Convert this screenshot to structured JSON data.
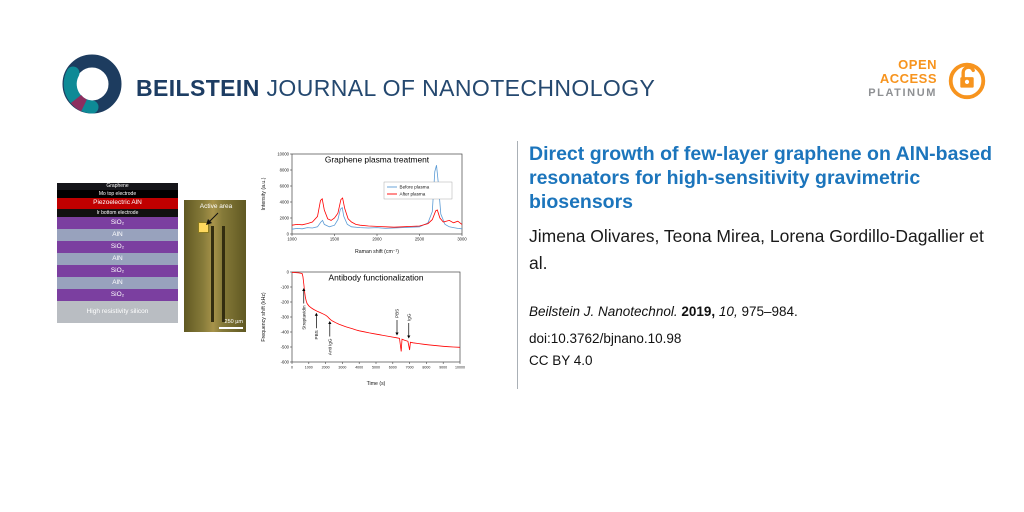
{
  "header": {
    "brand": "BEILSTEIN",
    "journal": "JOURNAL OF NANOTECHNOLOGY",
    "open_access": {
      "line1": "OPEN",
      "line2": "ACCESS",
      "line3": "PLATINUM"
    },
    "colors": {
      "navy": "#1d3d63",
      "orange": "#f7941e",
      "platinum_gray": "#8f9194"
    }
  },
  "figure": {
    "stack": {
      "layers": [
        {
          "label": "Graphene",
          "color": "#15151a",
          "h": 7
        },
        {
          "label": "Mo top electrode",
          "color": "#000000",
          "h": 8
        },
        {
          "label": "Piezoelectric AlN",
          "color": "#c00000",
          "h": 11
        },
        {
          "label": "Ir bottom electrode",
          "color": "#111111",
          "h": 8
        },
        {
          "label": "SiO₂",
          "color": "#7b3fa0",
          "h": 12
        },
        {
          "label": "AlN",
          "color": "#98a2bd",
          "h": 12
        },
        {
          "label": "SiO₂",
          "color": "#7b3fa0",
          "h": 12
        },
        {
          "label": "AlN",
          "color": "#98a2bd",
          "h": 12
        },
        {
          "label": "SiO₂",
          "color": "#7b3fa0",
          "h": 12
        },
        {
          "label": "AlN",
          "color": "#98a2bd",
          "h": 12
        },
        {
          "label": "SiO₂",
          "color": "#7b3fa0",
          "h": 12
        },
        {
          "label": "High resistivity silicon",
          "color": "#b9bdc2",
          "h": 22
        }
      ]
    },
    "micrograph": {
      "label": "Active area",
      "scale": "250 µm"
    }
  },
  "chart_data": [
    {
      "type": "line",
      "title": "Graphene plasma treatment",
      "xlabel": "Raman shift (cm⁻¹)",
      "ylabel": "Intensity (a.u.)",
      "xlim": [
        1000,
        3000
      ],
      "ylim": [
        0,
        10000
      ],
      "xticks": [
        1000,
        1500,
        2000,
        2500,
        3000
      ],
      "yticks": [
        0,
        2000,
        4000,
        6000,
        8000,
        10000
      ],
      "legend_position": "right",
      "series": [
        {
          "name": "Before plasma",
          "color": "#5b9bd5",
          "points": [
            [
              1000,
              600
            ],
            [
              1060,
              700
            ],
            [
              1120,
              650
            ],
            [
              1180,
              800
            ],
            [
              1240,
              750
            ],
            [
              1300,
              900
            ],
            [
              1340,
              1500
            ],
            [
              1360,
              1700
            ],
            [
              1380,
              1200
            ],
            [
              1440,
              900
            ],
            [
              1500,
              1100
            ],
            [
              1540,
              1800
            ],
            [
              1570,
              3100
            ],
            [
              1590,
              3300
            ],
            [
              1610,
              2200
            ],
            [
              1650,
              1200
            ],
            [
              1700,
              900
            ],
            [
              1800,
              800
            ],
            [
              1900,
              750
            ],
            [
              2000,
              800
            ],
            [
              2100,
              700
            ],
            [
              2200,
              750
            ],
            [
              2300,
              800
            ],
            [
              2400,
              850
            ],
            [
              2500,
              900
            ],
            [
              2600,
              1400
            ],
            [
              2650,
              2800
            ],
            [
              2680,
              7800
            ],
            [
              2700,
              8600
            ],
            [
              2720,
              6500
            ],
            [
              2750,
              2500
            ],
            [
              2800,
              1200
            ],
            [
              2850,
              900
            ],
            [
              2900,
              800
            ],
            [
              2950,
              700
            ],
            [
              3000,
              650
            ]
          ]
        },
        {
          "name": "After plasma",
          "color": "#ff0000",
          "points": [
            [
              1000,
              1100
            ],
            [
              1060,
              1200
            ],
            [
              1120,
              1150
            ],
            [
              1180,
              1300
            ],
            [
              1240,
              1500
            ],
            [
              1300,
              2200
            ],
            [
              1335,
              4200
            ],
            [
              1355,
              4400
            ],
            [
              1380,
              3000
            ],
            [
              1420,
              1900
            ],
            [
              1460,
              1700
            ],
            [
              1500,
              2000
            ],
            [
              1540,
              2600
            ],
            [
              1575,
              4300
            ],
            [
              1595,
              4500
            ],
            [
              1620,
              3200
            ],
            [
              1660,
              1900
            ],
            [
              1700,
              1500
            ],
            [
              1750,
              1200
            ],
            [
              1800,
              1100
            ],
            [
              1900,
              1000
            ],
            [
              2000,
              950
            ],
            [
              2100,
              900
            ],
            [
              2200,
              850
            ],
            [
              2300,
              900
            ],
            [
              2400,
              950
            ],
            [
              2500,
              1000
            ],
            [
              2600,
              1300
            ],
            [
              2650,
              1800
            ],
            [
              2690,
              2900
            ],
            [
              2710,
              3000
            ],
            [
              2740,
              2000
            ],
            [
              2780,
              1500
            ],
            [
              2850,
              1700
            ],
            [
              2900,
              1400
            ],
            [
              2950,
              1600
            ],
            [
              3000,
              1200
            ]
          ]
        }
      ]
    },
    {
      "type": "line",
      "title": "Antibody functionalization",
      "xlabel": "Time (s)",
      "ylabel": "Frequency shift (kHz)",
      "xlim": [
        0,
        10000
      ],
      "ylim": [
        -600,
        0
      ],
      "xticks": [
        0,
        1000,
        2000,
        3000,
        4000,
        5000,
        6000,
        7000,
        8000,
        9000,
        10000
      ],
      "yticks": [
        0,
        -100,
        -200,
        -300,
        -400,
        -500,
        -600
      ],
      "series": [
        {
          "name": "Frequency shift",
          "color": "#ff0000",
          "points": [
            [
              0,
              -2
            ],
            [
              200,
              -4
            ],
            [
              400,
              -6
            ],
            [
              600,
              -10
            ],
            [
              650,
              -30
            ],
            [
              700,
              -80
            ],
            [
              750,
              -130
            ],
            [
              800,
              -170
            ],
            [
              850,
              -195
            ],
            [
              900,
              -210
            ],
            [
              1000,
              -225
            ],
            [
              1100,
              -235
            ],
            [
              1200,
              -243
            ],
            [
              1300,
              -250
            ],
            [
              1400,
              -256
            ],
            [
              1500,
              -262
            ],
            [
              1700,
              -272
            ],
            [
              1900,
              -282
            ],
            [
              2000,
              -288
            ],
            [
              2100,
              -296
            ],
            [
              2200,
              -308
            ],
            [
              2300,
              -318
            ],
            [
              2400,
              -326
            ],
            [
              2600,
              -338
            ],
            [
              2800,
              -348
            ],
            [
              3000,
              -357
            ],
            [
              3200,
              -365
            ],
            [
              3400,
              -372
            ],
            [
              3600,
              -379
            ],
            [
              3800,
              -386
            ],
            [
              4000,
              -392
            ],
            [
              4300,
              -399
            ],
            [
              4600,
              -406
            ],
            [
              4900,
              -412
            ],
            [
              5200,
              -418
            ],
            [
              5500,
              -424
            ],
            [
              5800,
              -430
            ],
            [
              6000,
              -434
            ],
            [
              6200,
              -438
            ],
            [
              6400,
              -442
            ],
            [
              6500,
              -530
            ],
            [
              6550,
              -448
            ],
            [
              6700,
              -455
            ],
            [
              6900,
              -462
            ],
            [
              7000,
              -520
            ],
            [
              7050,
              -468
            ],
            [
              7200,
              -472
            ],
            [
              7500,
              -477
            ],
            [
              7800,
              -481
            ],
            [
              8100,
              -485
            ],
            [
              8400,
              -489
            ],
            [
              8700,
              -492
            ],
            [
              9000,
              -495
            ],
            [
              9300,
              -498
            ],
            [
              9600,
              -500
            ],
            [
              10000,
              -502
            ]
          ]
        }
      ],
      "annotations": [
        {
          "label": "Streptavidin",
          "x": 700,
          "tip": -90,
          "side": "below"
        },
        {
          "label": "PBS",
          "x": 1450,
          "tip": -255,
          "side": "below"
        },
        {
          "label": "Anti IgG",
          "x": 2250,
          "tip": -310,
          "side": "below"
        },
        {
          "label": "PBS",
          "x": 6250,
          "tip": -440,
          "side": "above"
        },
        {
          "label": "IgG",
          "x": 6950,
          "tip": -460,
          "side": "above"
        }
      ]
    }
  ],
  "article": {
    "title": "Direct growth of few-layer graphene on AlN-based resonators for high-sensitivity gravimetric biosensors",
    "authors": "Jimena Olivares, Teona Mirea, Lorena Gordillo-Dagallier et al.",
    "citation": {
      "journal": "Beilstein J. Nanotechnol.",
      "year": "2019,",
      "volume": "10,",
      "pages": "975–984."
    },
    "doi": "doi:10.3762/bjnano.10.98",
    "license": "CC BY 4.0"
  }
}
